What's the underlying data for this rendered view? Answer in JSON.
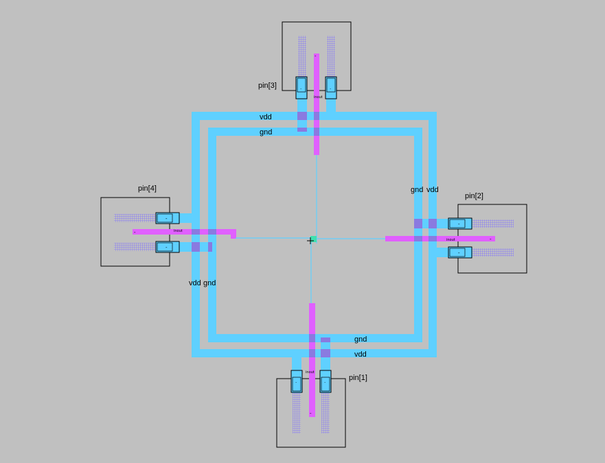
{
  "colors": {
    "background": "#c0c0c0",
    "metal1": "#5fd0ff",
    "metal2": "#e060ff",
    "overlap": "#8a7ae0",
    "outline": "#000000",
    "grid": "#8070ff",
    "origin": "#40e0b0"
  },
  "rails": {
    "vdd_top": "vdd",
    "gnd_top": "gnd",
    "gnd_right": "gnd",
    "vdd_right": "vdd",
    "vdd_left": "vdd",
    "gnd_left": "gnd",
    "gnd_bottom": "gnd",
    "vdd_bottom": "vdd"
  },
  "pins": {
    "pin1": "pin[1]",
    "pin2": "pin[2]",
    "pin3": "pin[3]",
    "pin4": "pin[4]"
  },
  "inout_label": "inout",
  "terminal_mark": "-",
  "pad_mark": "."
}
